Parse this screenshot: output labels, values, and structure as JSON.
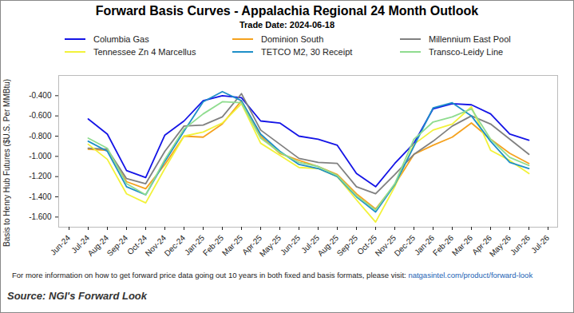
{
  "chart_data": {
    "type": "line",
    "title": "Forward Basis Curves - Appalachia Regional 24 Month Outlook",
    "subtitle": "Trade Date: 2024-06-18",
    "y_label": "Basis to Henry Hub Futures ($U.S. Per MMBtu)",
    "footnote": "For more information on how to get forward price data going out 10 years in both fixed and basis formats, please visit: ",
    "footnote_link": "natgasintel.com/product/forward-look",
    "source": "Source: NGI's Forward Look",
    "categories": [
      "Jun-24",
      "Jul-24",
      "Aug-24",
      "Sep-24",
      "Oct-24",
      "Nov-24",
      "Dec-24",
      "Jan-25",
      "Feb-25",
      "Mar-25",
      "Apr-25",
      "May-25",
      "Jun-25",
      "Jul-25",
      "Aug-25",
      "Sep-25",
      "Oct-25",
      "Nov-25",
      "Dec-25",
      "Jan-26",
      "Feb-26",
      "Mar-26",
      "Apr-26",
      "May-26",
      "Jun-26",
      "Jul-26"
    ],
    "series": [
      {
        "name": "Columbia Gas",
        "color": "#1414e6",
        "values": [
          null,
          -0.63,
          -0.78,
          -1.14,
          -1.21,
          -0.79,
          -0.65,
          -0.45,
          -0.4,
          -0.42,
          -0.65,
          -0.67,
          -0.8,
          -0.83,
          -0.89,
          -1.17,
          -1.3,
          -1.07,
          -0.87,
          -0.53,
          -0.48,
          -0.49,
          -0.58,
          -0.78,
          -0.84,
          null
        ]
      },
      {
        "name": "Dominion South",
        "color": "#f5a21e",
        "values": [
          null,
          -0.93,
          -0.94,
          -1.25,
          -1.32,
          -1.08,
          -0.8,
          -0.81,
          -0.68,
          -0.45,
          -0.8,
          -0.97,
          -1.04,
          -1.1,
          -1.18,
          -1.37,
          -1.52,
          -1.28,
          -0.98,
          -0.89,
          -0.81,
          -0.67,
          -0.83,
          -0.97,
          -1.07,
          null
        ]
      },
      {
        "name": "Millennium East Pool",
        "color": "#808080",
        "values": [
          null,
          -0.92,
          -0.93,
          -1.22,
          -1.27,
          -0.95,
          -0.7,
          -0.69,
          -0.61,
          -0.38,
          -0.74,
          -0.88,
          -1.02,
          -1.06,
          -1.07,
          -1.3,
          -1.37,
          -1.18,
          -0.98,
          -0.85,
          -0.7,
          -0.6,
          -0.68,
          -0.83,
          -0.98,
          null
        ]
      },
      {
        "name": "Tennessee Zn 4 Marcellus",
        "color": "#f2f23a",
        "values": [
          null,
          -0.88,
          -1.03,
          -1.37,
          -1.46,
          -1.12,
          -0.8,
          -0.76,
          -0.67,
          -0.48,
          -0.87,
          -0.99,
          -1.11,
          -1.12,
          -1.2,
          -1.43,
          -1.65,
          -1.3,
          -0.88,
          -0.74,
          -0.68,
          -0.51,
          -0.94,
          -1.04,
          -1.17,
          null
        ]
      },
      {
        "name": "TETCO M2, 30 Receipt",
        "color": "#1e8fc8",
        "values": [
          null,
          -0.85,
          -0.95,
          -1.3,
          -1.38,
          -1.05,
          -0.75,
          -0.46,
          -0.36,
          -0.45,
          -0.78,
          -0.95,
          -1.08,
          -1.12,
          -1.2,
          -1.4,
          -1.55,
          -1.28,
          -0.9,
          -0.52,
          -0.47,
          -0.6,
          -0.85,
          -1.06,
          -1.12,
          null
        ]
      },
      {
        "name": "Transco-Leidy Line",
        "color": "#8fdc8f",
        "values": [
          null,
          -0.82,
          -0.92,
          -1.27,
          -1.38,
          -1.03,
          -0.73,
          -0.58,
          -0.46,
          -0.47,
          -0.82,
          -0.96,
          -1.06,
          -1.1,
          -1.19,
          -1.39,
          -1.53,
          -1.27,
          -0.83,
          -0.66,
          -0.61,
          -0.53,
          -0.83,
          -1.01,
          -1.09,
          null
        ]
      }
    ],
    "ylim": [
      -1.7,
      -0.2
    ],
    "yticks": [
      {
        "value": -1.6,
        "label": "-1.600"
      },
      {
        "value": -1.4,
        "label": "-1.400"
      },
      {
        "value": -1.2,
        "label": "-1.200"
      },
      {
        "value": -1.0,
        "label": "-1.000"
      },
      {
        "value": -0.8,
        "label": "-0.800"
      },
      {
        "value": -0.6,
        "label": "-0.600"
      },
      {
        "value": -0.4,
        "label": "-0.400"
      }
    ],
    "grid": false,
    "legend": "top"
  }
}
